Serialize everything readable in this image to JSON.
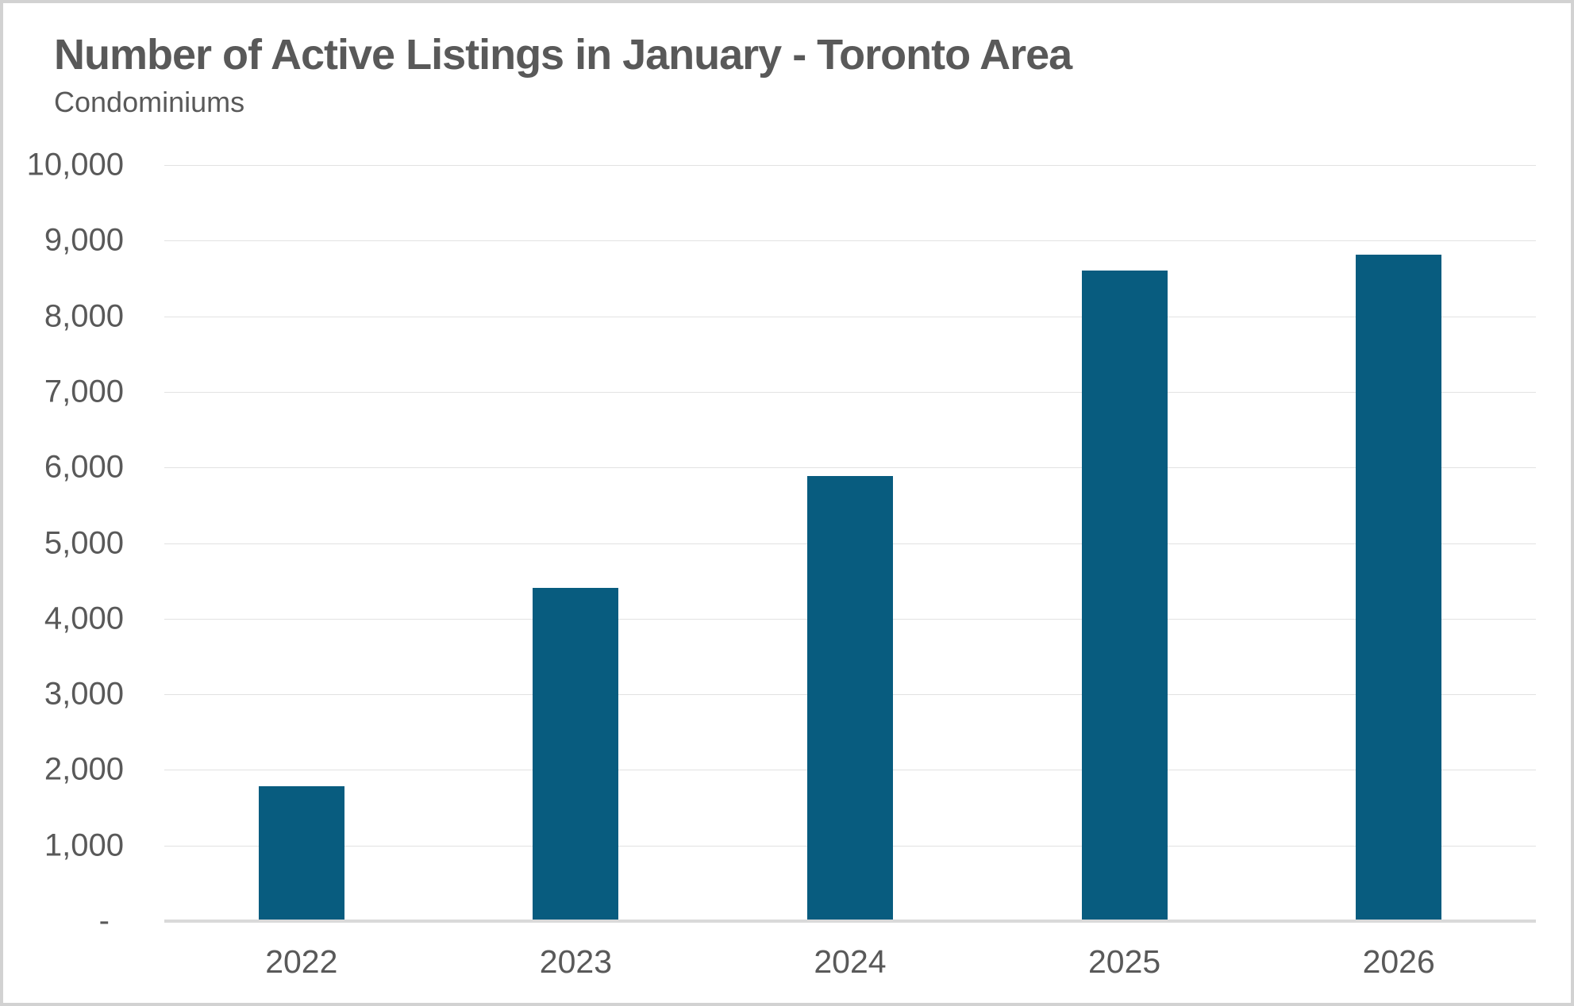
{
  "header": {
    "title": "Number of Active Listings in January - Toronto Area",
    "subtitle": "Condominiums"
  },
  "colors": {
    "bar": "#085c7f",
    "text": "#595959",
    "gridline": "#e2e2e2",
    "baseline": "#d9d9d9",
    "frame_border": "#d2d2d2",
    "background": "#ffffff"
  },
  "chart_data": {
    "type": "bar",
    "title": "Number of Active Listings in January - Toronto Area",
    "subtitle": "Condominiums",
    "categories": [
      "2022",
      "2023",
      "2024",
      "2025",
      "2026"
    ],
    "values": [
      1780,
      4410,
      5890,
      8600,
      8810
    ],
    "xlabel": "",
    "ylabel": "",
    "ylim": [
      0,
      10000
    ],
    "ytick_interval": 1000,
    "ytick_labels": [
      "-",
      "1,000",
      "2,000",
      "3,000",
      "4,000",
      "5,000",
      "6,000",
      "7,000",
      "8,000",
      "9,000",
      "10,000"
    ],
    "grid": "horizontal",
    "legend": "none",
    "bar_color": "#085c7f"
  }
}
